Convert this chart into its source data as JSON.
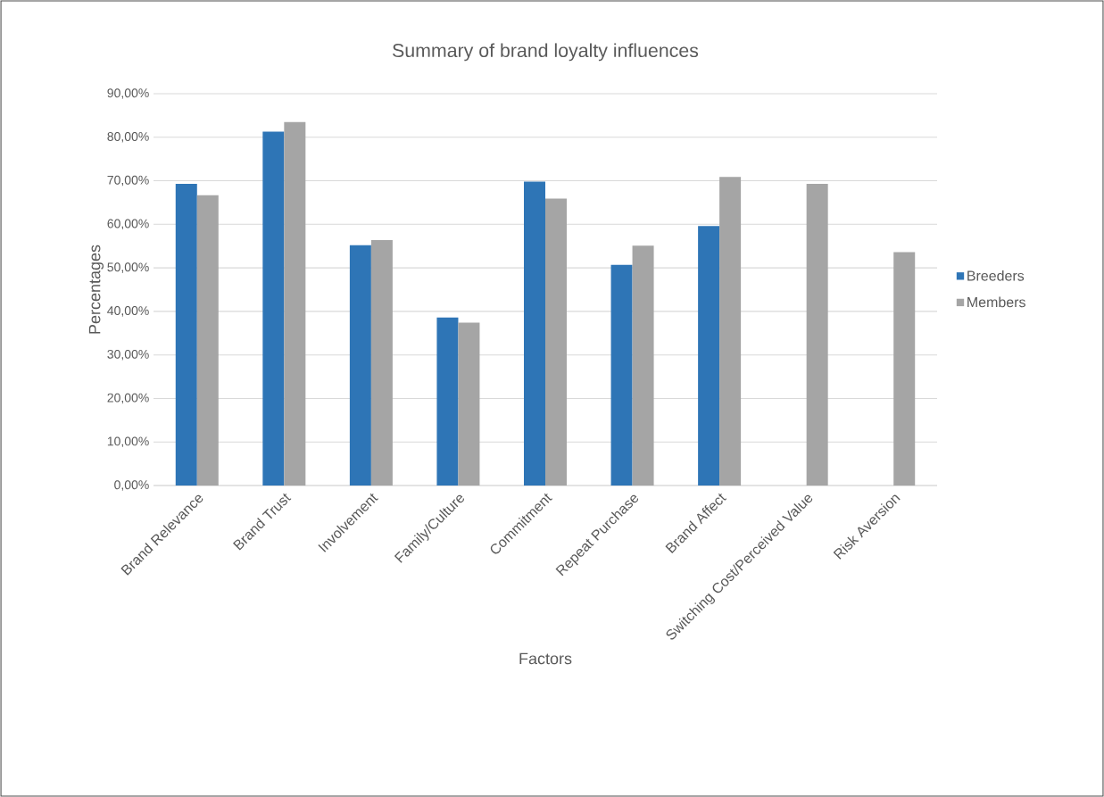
{
  "chart_data": {
    "type": "bar",
    "title": "Summary of brand loyalty influences",
    "xlabel": "Factors",
    "ylabel": "Percentages",
    "categories": [
      "Brand Relevance",
      "Brand Trust",
      "Involvement",
      "Family/Culture",
      "Commitment",
      "Repeat Purchase",
      "Brand Affect",
      "Switching Cost/Perceived Value",
      "Risk Aversion"
    ],
    "series": [
      {
        "name": "Breeders",
        "color": "#2e75b6",
        "values": [
          69.3,
          81.3,
          55.2,
          38.6,
          69.8,
          50.7,
          59.6,
          null,
          null
        ]
      },
      {
        "name": "Members",
        "color": "#a5a5a5",
        "values": [
          66.7,
          83.5,
          56.4,
          37.4,
          65.9,
          55.1,
          70.9,
          69.3,
          53.6
        ]
      }
    ],
    "ylim": [
      0,
      90
    ],
    "yticks": [
      {
        "value": 0,
        "label": "0,00%"
      },
      {
        "value": 10,
        "label": "10,00%"
      },
      {
        "value": 20,
        "label": "20,00%"
      },
      {
        "value": 30,
        "label": "30,00%"
      },
      {
        "value": 40,
        "label": "40,00%"
      },
      {
        "value": 50,
        "label": "50,00%"
      },
      {
        "value": 60,
        "label": "60,00%"
      },
      {
        "value": 70,
        "label": "70,00%"
      },
      {
        "value": 80,
        "label": "80,00%"
      },
      {
        "value": 90,
        "label": "90,00%"
      }
    ],
    "grid": "y",
    "legend": "right"
  }
}
